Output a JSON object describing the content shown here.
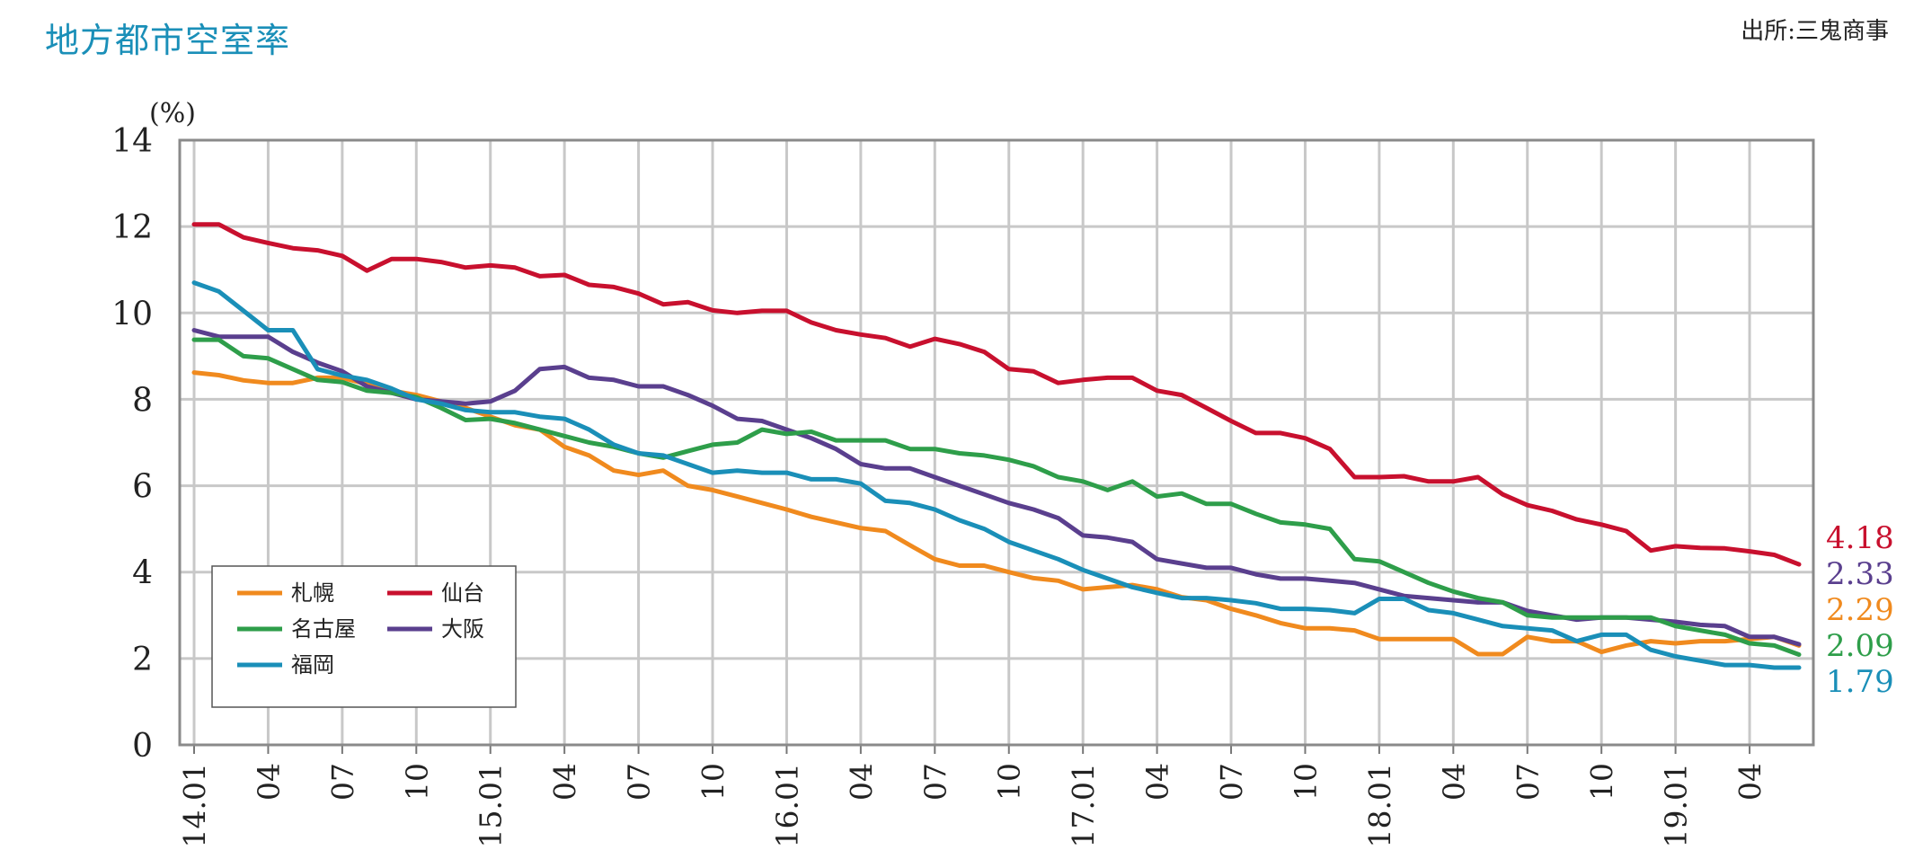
{
  "header": {
    "title": "地方都市空室率",
    "source": "出所:三鬼商事"
  },
  "chart_data": {
    "type": "line",
    "title": "地方都市空室率",
    "ylabel": "(%)",
    "xlabel": "",
    "ylim": [
      0,
      14
    ],
    "yticks": [
      0,
      2,
      4,
      6,
      8,
      10,
      12,
      14
    ],
    "grid": true,
    "legend_position": "bottom-left",
    "x_tick_labels": [
      "14.01",
      "04",
      "07",
      "10",
      "15.01",
      "04",
      "07",
      "10",
      "16.01",
      "04",
      "07",
      "10",
      "17.01",
      "04",
      "07",
      "10",
      "18.01",
      "04",
      "07",
      "10",
      "19.01",
      "04"
    ],
    "x_start": "2014-01",
    "n_points": 66,
    "series": [
      {
        "name": "札幌",
        "color": "#f08a1e",
        "end_label": "2.29",
        "values": [
          8.62,
          8.56,
          8.44,
          8.38,
          8.38,
          8.5,
          8.5,
          8.35,
          8.2,
          8.1,
          7.95,
          7.8,
          7.6,
          7.4,
          7.3,
          6.9,
          6.7,
          6.35,
          6.25,
          6.35,
          6.0,
          5.9,
          5.75,
          5.6,
          5.45,
          5.28,
          5.15,
          5.02,
          4.95,
          4.62,
          4.3,
          4.15,
          4.15,
          4.0,
          3.86,
          3.8,
          3.6,
          3.65,
          3.7,
          3.6,
          3.42,
          3.35,
          3.15,
          3.0,
          2.82,
          2.7,
          2.7,
          2.65,
          2.45,
          2.45,
          2.45,
          2.45,
          2.1,
          2.1,
          2.5,
          2.4,
          2.4,
          2.15,
          2.3,
          2.4,
          2.35,
          2.4,
          2.4,
          2.45,
          2.5,
          2.3
        ]
      },
      {
        "name": "仙台",
        "color": "#c8102e",
        "end_label": "4.18",
        "values": [
          12.05,
          12.05,
          11.75,
          11.62,
          11.5,
          11.45,
          11.32,
          10.98,
          11.25,
          11.25,
          11.18,
          11.05,
          11.1,
          11.05,
          10.85,
          10.88,
          10.65,
          10.6,
          10.45,
          10.2,
          10.25,
          10.06,
          10.0,
          10.05,
          10.05,
          9.78,
          9.6,
          9.5,
          9.42,
          9.22,
          9.4,
          9.28,
          9.1,
          8.7,
          8.65,
          8.38,
          8.45,
          8.5,
          8.5,
          8.2,
          8.1,
          7.8,
          7.5,
          7.22,
          7.22,
          7.1,
          6.85,
          6.2,
          6.2,
          6.22,
          6.1,
          6.1,
          6.2,
          5.8,
          5.55,
          5.42,
          5.22,
          5.1,
          4.95,
          4.5,
          4.6,
          4.56,
          4.55,
          4.48,
          4.4,
          4.18
        ]
      },
      {
        "name": "名古屋",
        "color": "#2e9e4a",
        "end_label": "2.09",
        "values": [
          9.38,
          9.38,
          9.0,
          8.95,
          8.7,
          8.45,
          8.4,
          8.2,
          8.15,
          8.05,
          7.8,
          7.52,
          7.55,
          7.45,
          7.3,
          7.15,
          7.0,
          6.9,
          6.75,
          6.65,
          6.8,
          6.95,
          7.0,
          7.3,
          7.2,
          7.25,
          7.05,
          7.05,
          7.05,
          6.85,
          6.85,
          6.75,
          6.7,
          6.6,
          6.45,
          6.2,
          6.1,
          5.9,
          6.1,
          5.75,
          5.82,
          5.58,
          5.58,
          5.35,
          5.15,
          5.1,
          5.0,
          4.3,
          4.25,
          4.0,
          3.75,
          3.55,
          3.4,
          3.3,
          3.0,
          2.95,
          2.95,
          2.95,
          2.95,
          2.95,
          2.75,
          2.65,
          2.55,
          2.35,
          2.3,
          2.09
        ]
      },
      {
        "name": "大阪",
        "color": "#5a3f8e",
        "end_label": "2.33",
        "values": [
          9.6,
          9.45,
          9.45,
          9.45,
          9.1,
          8.85,
          8.65,
          8.3,
          8.15,
          8.0,
          7.95,
          7.9,
          7.95,
          8.2,
          8.7,
          8.75,
          8.5,
          8.45,
          8.3,
          8.3,
          8.1,
          7.85,
          7.55,
          7.5,
          7.3,
          7.1,
          6.85,
          6.5,
          6.4,
          6.4,
          6.2,
          6.0,
          5.8,
          5.6,
          5.45,
          5.25,
          4.85,
          4.8,
          4.7,
          4.3,
          4.2,
          4.1,
          4.1,
          3.95,
          3.85,
          3.85,
          3.8,
          3.75,
          3.6,
          3.45,
          3.4,
          3.35,
          3.3,
          3.3,
          3.1,
          3.0,
          2.9,
          2.95,
          2.95,
          2.9,
          2.85,
          2.78,
          2.75,
          2.5,
          2.5,
          2.33
        ]
      },
      {
        "name": "福岡",
        "color": "#1a8fb8",
        "end_label": "1.79",
        "values": [
          10.7,
          10.5,
          10.05,
          9.6,
          9.6,
          8.7,
          8.55,
          8.45,
          8.25,
          8.0,
          7.9,
          7.75,
          7.7,
          7.7,
          7.6,
          7.55,
          7.3,
          6.95,
          6.75,
          6.7,
          6.5,
          6.3,
          6.35,
          6.3,
          6.3,
          6.15,
          6.15,
          6.05,
          5.65,
          5.6,
          5.45,
          5.2,
          5.0,
          4.7,
          4.5,
          4.3,
          4.05,
          3.85,
          3.65,
          3.52,
          3.4,
          3.4,
          3.35,
          3.28,
          3.15,
          3.15,
          3.12,
          3.05,
          3.38,
          3.38,
          3.12,
          3.05,
          2.9,
          2.75,
          2.7,
          2.65,
          2.4,
          2.55,
          2.55,
          2.2,
          2.05,
          1.95,
          1.85,
          1.85,
          1.79,
          1.79
        ]
      }
    ]
  }
}
